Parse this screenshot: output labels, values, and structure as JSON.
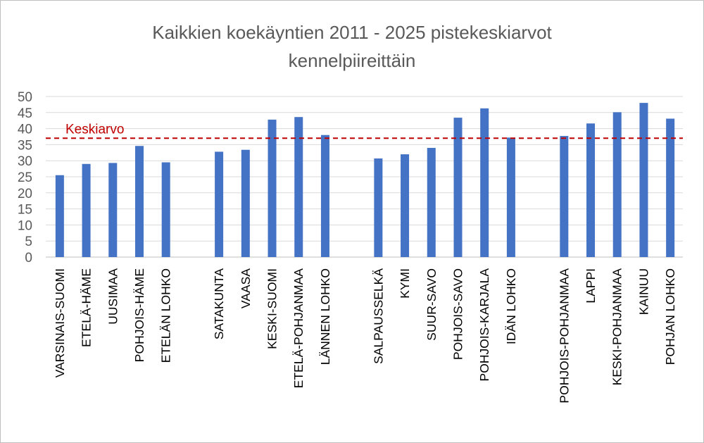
{
  "chart_data": {
    "type": "bar",
    "title_lines": [
      "Kaikkien koekäyntien 2011 - 2025 pistekeskiarvot",
      "kennelpiireittäin"
    ],
    "xlabel": "",
    "ylabel": "",
    "ylim": [
      0,
      50
    ],
    "yticks": [
      0,
      5,
      10,
      15,
      20,
      25,
      30,
      35,
      40,
      45,
      50
    ],
    "grid": true,
    "legend": "none",
    "categories": [
      "VARSINAIS-SUOMI",
      "ETELÄ-HÄME",
      "UUSIMAA",
      "POHJOIS-HÄME",
      "ETELÄN LOHKO",
      "",
      "SATAKUNTA",
      "VAASA",
      "KESKI-SUOMI",
      "ETELÄ-POHJANMAA",
      "LÄNNEN LOHKO",
      "",
      "SALPAUSSELKÄ",
      "KYMI",
      "SUUR-SAVO",
      "POHJOIS-SAVO",
      "POHJOIS-KARJALA",
      "IDÄN LOHKO",
      "",
      "POHJOIS-POHJANMAA",
      "LAPPI",
      "KESKI-POHJANMAA",
      "KAINUU",
      "POHJAN LOHKO"
    ],
    "values": [
      25.5,
      29.0,
      29.3,
      34.6,
      29.5,
      null,
      32.8,
      33.4,
      42.8,
      43.6,
      38.0,
      null,
      30.7,
      32.0,
      34.0,
      43.4,
      46.3,
      37.2,
      null,
      37.7,
      41.6,
      45.1,
      48.0,
      43.1
    ],
    "bar_color": "#4472c4",
    "reference_line": {
      "label": "Keskiarvo",
      "value": 37.0,
      "color": "#c00000",
      "style": "dashed"
    }
  }
}
